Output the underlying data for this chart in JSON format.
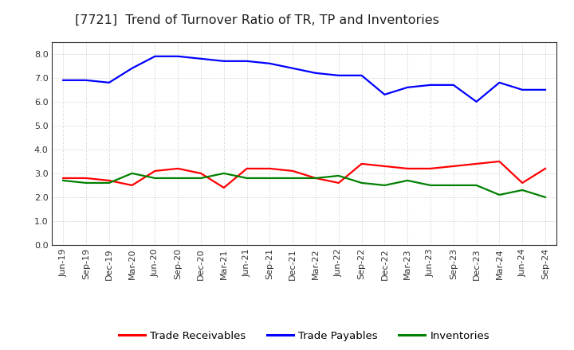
{
  "title": "[7721]  Trend of Turnover Ratio of TR, TP and Inventories",
  "x_labels": [
    "Jun-19",
    "Sep-19",
    "Dec-19",
    "Mar-20",
    "Jun-20",
    "Sep-20",
    "Dec-20",
    "Mar-21",
    "Jun-21",
    "Sep-21",
    "Dec-21",
    "Mar-22",
    "Jun-22",
    "Sep-22",
    "Dec-22",
    "Mar-23",
    "Jun-23",
    "Sep-23",
    "Dec-23",
    "Mar-24",
    "Jun-24",
    "Sep-24"
  ],
  "trade_receivables": [
    2.8,
    2.8,
    2.7,
    2.5,
    3.1,
    3.2,
    3.0,
    2.4,
    3.2,
    3.2,
    3.1,
    2.8,
    2.6,
    3.4,
    3.3,
    3.2,
    3.2,
    3.3,
    3.4,
    3.5,
    2.6,
    3.2
  ],
  "trade_payables": [
    6.9,
    6.9,
    6.8,
    7.4,
    7.9,
    7.9,
    7.8,
    7.7,
    7.7,
    7.6,
    7.4,
    7.2,
    7.1,
    7.1,
    6.3,
    6.6,
    6.7,
    6.7,
    6.0,
    6.8,
    6.5,
    6.5
  ],
  "inventories": [
    2.7,
    2.6,
    2.6,
    3.0,
    2.8,
    2.8,
    2.8,
    3.0,
    2.8,
    2.8,
    2.8,
    2.8,
    2.9,
    2.6,
    2.5,
    2.7,
    2.5,
    2.5,
    2.5,
    2.1,
    2.3,
    2.0
  ],
  "ylim": [
    0.0,
    8.5
  ],
  "yticks": [
    0.0,
    1.0,
    2.0,
    3.0,
    4.0,
    5.0,
    6.0,
    7.0,
    8.0
  ],
  "tr_color": "#ff0000",
  "tp_color": "#0000ff",
  "inv_color": "#008000",
  "bg_color": "#ffffff",
  "plot_bg_color": "#ffffff",
  "grid_color": "#bbbbbb",
  "legend_labels": [
    "Trade Receivables",
    "Trade Payables",
    "Inventories"
  ],
  "title_fontsize": 11.5,
  "tick_fontsize": 8,
  "legend_fontsize": 9.5,
  "line_width": 1.6
}
